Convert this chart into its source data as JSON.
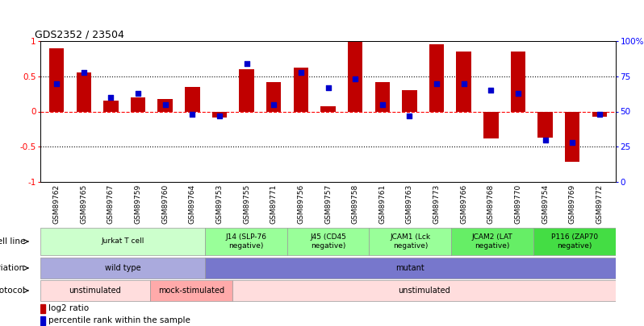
{
  "title": "GDS2352 / 23504",
  "samples": [
    "GSM89762",
    "GSM89765",
    "GSM89767",
    "GSM89759",
    "GSM89760",
    "GSM89764",
    "GSM89753",
    "GSM89755",
    "GSM89771",
    "GSM89756",
    "GSM89757",
    "GSM89758",
    "GSM89761",
    "GSM89763",
    "GSM89773",
    "GSM89766",
    "GSM89768",
    "GSM89770",
    "GSM89754",
    "GSM89769",
    "GSM89772"
  ],
  "log2_ratio": [
    0.9,
    0.55,
    0.15,
    0.2,
    0.18,
    0.35,
    -0.08,
    0.6,
    0.42,
    0.62,
    0.07,
    1.0,
    0.42,
    0.3,
    0.95,
    0.85,
    -0.38,
    0.85,
    -0.37,
    -0.72,
    -0.07
  ],
  "percentile": [
    70,
    78,
    60,
    63,
    55,
    48,
    47,
    84,
    55,
    78,
    67,
    73,
    55,
    47,
    70,
    70,
    65,
    63,
    30,
    28,
    48
  ],
  "bar_color": "#c00000",
  "dot_color": "#0000cc",
  "cell_line_groups": [
    {
      "label": "Jurkat T cell",
      "start": 0,
      "end": 6,
      "color": "#ccffcc"
    },
    {
      "label": "J14 (SLP-76\nnegative)",
      "start": 6,
      "end": 9,
      "color": "#99ff99"
    },
    {
      "label": "J45 (CD45\nnegative)",
      "start": 9,
      "end": 12,
      "color": "#99ff99"
    },
    {
      "label": "JCAM1 (Lck\nnegative)",
      "start": 12,
      "end": 15,
      "color": "#99ff99"
    },
    {
      "label": "JCAM2 (LAT\nnegative)",
      "start": 15,
      "end": 18,
      "color": "#66ee66"
    },
    {
      "label": "P116 (ZAP70\nnegative)",
      "start": 18,
      "end": 21,
      "color": "#44dd44"
    }
  ],
  "genotype_groups": [
    {
      "label": "wild type",
      "start": 0,
      "end": 6,
      "color": "#aaaadd"
    },
    {
      "label": "mutant",
      "start": 6,
      "end": 21,
      "color": "#7777cc"
    }
  ],
  "protocol_groups": [
    {
      "label": "unstimulated",
      "start": 0,
      "end": 4,
      "color": "#ffdddd"
    },
    {
      "label": "mock-stimulated",
      "start": 4,
      "end": 7,
      "color": "#ffaaaa"
    },
    {
      "label": "unstimulated",
      "start": 7,
      "end": 21,
      "color": "#ffdddd"
    }
  ],
  "ylim": [
    -1.0,
    1.0
  ],
  "yticks": [
    -1.0,
    -0.5,
    0.0,
    0.5,
    1.0
  ],
  "y2ticks": [
    0,
    25,
    50,
    75,
    100
  ],
  "y2ticklabels": [
    "0",
    "25",
    "50",
    "75",
    "100%"
  ],
  "legend_items": [
    {
      "color": "#c00000",
      "label": "log2 ratio"
    },
    {
      "color": "#0000cc",
      "label": "percentile rank within the sample"
    }
  ]
}
